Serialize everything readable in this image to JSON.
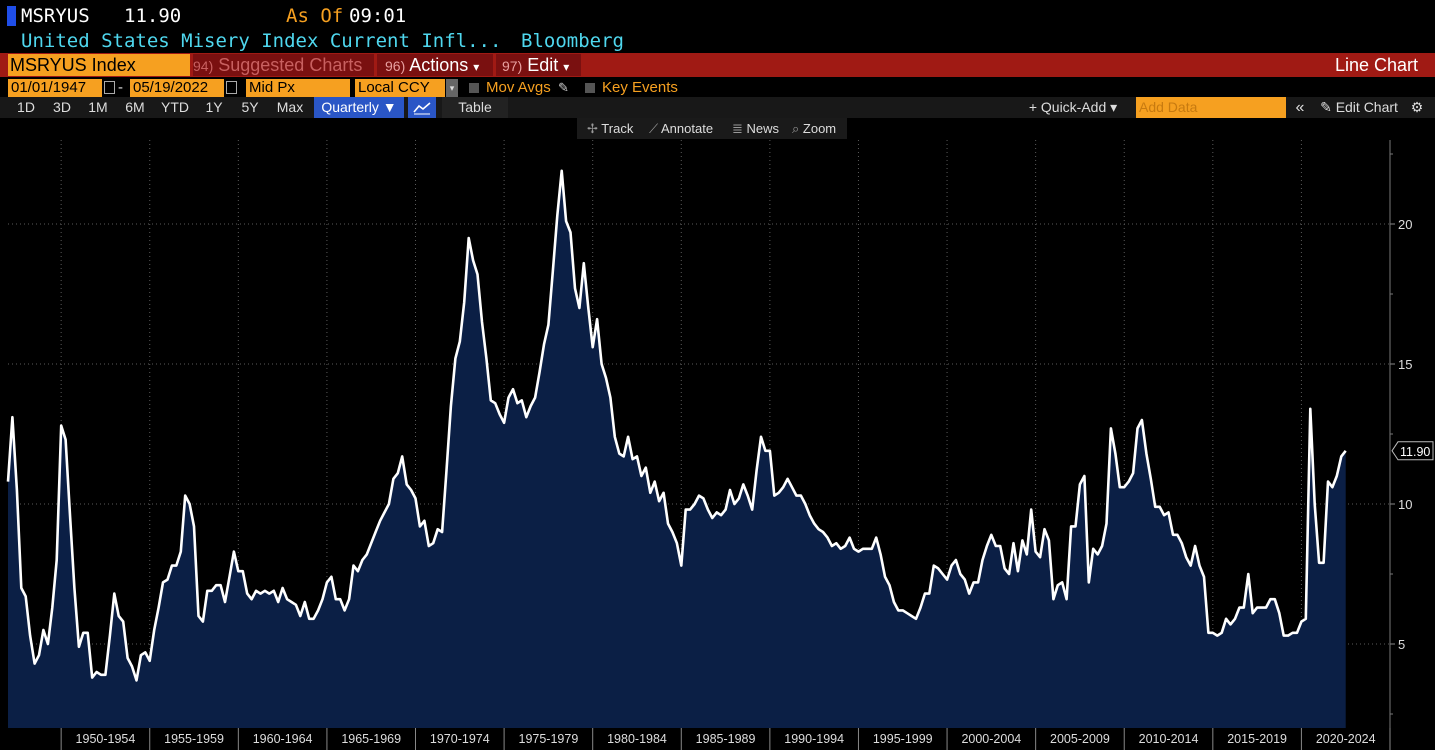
{
  "header": {
    "ticker": "MSRYUS",
    "last_value": "11.90",
    "as_of_label": "As Of",
    "as_of_time": "09:01",
    "description": "United States Misery Index Current Infl...",
    "source": "Bloomberg"
  },
  "menu": {
    "security": "MSRYUS Index",
    "suggested_num": "94)",
    "suggested_label": "Suggested Charts",
    "actions_num": "96)",
    "actions_label": "Actions",
    "edit_num": "97)",
    "edit_label": "Edit",
    "caret": "▾",
    "chart_type": "Line Chart"
  },
  "params": {
    "start_date": "01/01/1947",
    "date_sep": "-",
    "end_date": "05/19/2022",
    "price_field": "Mid Px",
    "currency": "Local CCY",
    "mov_avgs": "Mov Avgs",
    "key_events": "Key Events"
  },
  "periods": {
    "items": [
      "1D",
      "3D",
      "1M",
      "6M",
      "YTD",
      "1Y",
      "5Y",
      "Max"
    ],
    "frequency": "Quarterly ▼",
    "table": "Table",
    "quick_add": "+ Quick-Add ▾",
    "add_data_placeholder": "Add Data",
    "collapse": "«",
    "edit_chart": "Edit Chart",
    "settings_icon": "gear-icon"
  },
  "tools": {
    "track": "Track",
    "annotate": "Annotate",
    "news": "News",
    "zoom": "Zoom"
  },
  "colors": {
    "orange": "#f6a020",
    "red_bar": "#a01a14",
    "area": "#0b1f45",
    "line": "#ffffff",
    "cyan": "#4fd7ee"
  },
  "chart_data": {
    "type": "area",
    "series": [
      {
        "name": "MSRYUS Index",
        "x_start": 1947.0,
        "x_step": 0.25,
        "values": [
          10.8,
          13.1,
          10.5,
          7.0,
          6.7,
          5.3,
          4.3,
          4.6,
          5.5,
          5.0,
          6.3,
          8.0,
          12.8,
          12.3,
          9.6,
          7.0,
          4.9,
          5.4,
          5.4,
          3.8,
          4.0,
          3.9,
          3.9,
          5.3,
          6.8,
          6.0,
          5.8,
          4.5,
          4.2,
          3.7,
          4.6,
          4.7,
          4.4,
          5.5,
          6.3,
          7.2,
          7.3,
          7.8,
          7.8,
          8.3,
          10.3,
          10.0,
          9.2,
          6.0,
          5.8,
          6.9,
          6.9,
          7.1,
          7.1,
          6.5,
          7.4,
          8.3,
          7.6,
          7.6,
          6.8,
          6.6,
          6.9,
          6.8,
          6.9,
          6.8,
          6.9,
          6.5,
          7.0,
          6.6,
          6.5,
          6.4,
          6.0,
          6.5,
          5.9,
          5.9,
          6.2,
          6.6,
          7.2,
          7.4,
          6.6,
          6.6,
          6.2,
          6.6,
          7.8,
          7.6,
          8.0,
          8.2,
          8.6,
          9.0,
          9.4,
          9.7,
          10.0,
          10.9,
          11.1,
          11.7,
          10.7,
          10.5,
          10.2,
          9.2,
          9.4,
          8.5,
          8.6,
          9.1,
          9.0,
          11.2,
          13.5,
          15.2,
          15.8,
          17.2,
          19.5,
          18.7,
          18.2,
          16.5,
          15.2,
          13.7,
          13.6,
          13.2,
          12.9,
          13.8,
          14.1,
          13.6,
          13.7,
          13.1,
          13.5,
          13.8,
          14.7,
          15.7,
          16.4,
          18.3,
          20.3,
          21.9,
          20.1,
          19.7,
          17.7,
          17.0,
          18.6,
          17.0,
          15.6,
          16.6,
          15.0,
          14.5,
          13.8,
          12.4,
          11.8,
          11.7,
          12.4,
          11.6,
          11.7,
          11.0,
          11.3,
          10.4,
          10.8,
          10.1,
          10.4,
          9.3,
          9.0,
          8.6,
          7.8,
          9.8,
          9.8,
          10.0,
          10.3,
          10.2,
          9.8,
          9.5,
          9.7,
          9.6,
          9.8,
          10.5,
          10.0,
          10.2,
          10.7,
          10.3,
          9.8,
          11.2,
          12.4,
          11.9,
          11.9,
          10.3,
          10.4,
          10.6,
          10.9,
          10.6,
          10.3,
          10.3,
          10.0,
          9.6,
          9.3,
          9.1,
          9.0,
          8.8,
          8.5,
          8.6,
          8.4,
          8.5,
          8.8,
          8.4,
          8.3,
          8.4,
          8.4,
          8.4,
          8.8,
          8.2,
          7.4,
          7.1,
          6.5,
          6.2,
          6.2,
          6.1,
          6.0,
          5.9,
          6.3,
          6.8,
          6.8,
          7.8,
          7.7,
          7.5,
          7.3,
          7.8,
          8.0,
          7.5,
          7.3,
          6.8,
          7.2,
          7.2,
          8.0,
          8.5,
          8.9,
          8.5,
          8.5,
          7.7,
          7.5,
          8.6,
          7.6,
          8.7,
          8.2,
          9.8,
          8.3,
          8.1,
          9.1,
          8.7,
          6.6,
          7.1,
          7.2,
          6.6,
          9.2,
          9.2,
          10.7,
          11.0,
          7.2,
          8.4,
          8.2,
          8.5,
          9.3,
          12.7,
          11.8,
          10.6,
          10.6,
          10.8,
          11.1,
          12.7,
          13.0,
          11.8,
          10.9,
          9.9,
          9.9,
          9.6,
          9.7,
          8.9,
          8.9,
          8.6,
          8.1,
          7.8,
          8.5,
          7.8,
          7.4,
          5.4,
          5.4,
          5.3,
          5.4,
          5.9,
          5.7,
          5.9,
          6.3,
          6.3,
          7.5,
          6.1,
          6.3,
          6.3,
          6.3,
          6.6,
          6.6,
          6.1,
          5.3,
          5.3,
          5.4,
          5.4,
          5.8,
          5.9,
          13.4,
          10.0,
          7.9,
          7.9,
          10.8,
          10.6,
          11.0,
          11.7,
          11.9
        ]
      }
    ],
    "y_ticks": [
      "5",
      "10",
      "15",
      "20"
    ],
    "y_range": [
      2.0,
      23.0
    ],
    "x_range": [
      1947.0,
      2025.0
    ],
    "x_labels": [
      "1950-1954",
      "1955-1959",
      "1960-1964",
      "1965-1969",
      "1970-1974",
      "1975-1979",
      "1980-1984",
      "1985-1989",
      "1990-1994",
      "1995-1999",
      "2000-2004",
      "2005-2009",
      "2010-2014",
      "2015-2019",
      "2020-2024"
    ],
    "last_label": "11.90"
  }
}
